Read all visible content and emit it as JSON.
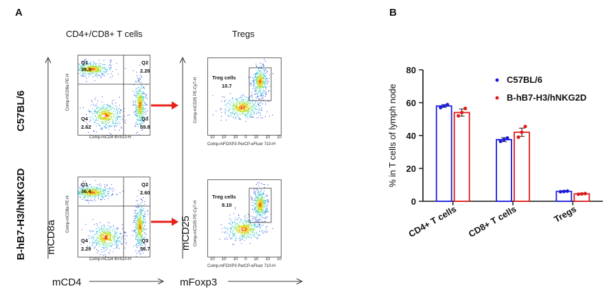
{
  "panel_a": {
    "letter": "A",
    "col_titles": [
      "CD4+/CD8+ T cells",
      "Tregs"
    ],
    "row_labels": [
      "C57BL/6",
      "B-hB7-H3/hNKG2D"
    ],
    "axis_captions": {
      "x_left": "mCD4",
      "y_left": "mCD8a",
      "x_right": "mFoxp3",
      "y_right": "mCD25"
    },
    "dot_x_label": "Comp-mCD4 BV510-H",
    "dot_y_label": "Comp-mCD8a PE-H",
    "treg_x_label": "Comp-mFOXP3 PerCP-eFluor 710-H",
    "treg_y_label": "Comp-mCD25 PE-Cy7-H",
    "treg_x_ticks": [
      "10",
      "10",
      "10",
      "0",
      "10",
      "10",
      "10"
    ],
    "quadrant_names": [
      "Q1",
      "Q2",
      "Q3",
      "Q4"
    ],
    "rows": [
      {
        "q1": "35.3",
        "q2": "2.26",
        "q3": "59.8",
        "q4": "2.62",
        "treg_gate": "Treg cells",
        "treg_value": "10.7"
      },
      {
        "q1": "36.4",
        "q2": "2.60",
        "q3": "58.7",
        "q4": "2.29",
        "treg_gate": "Treg cells",
        "treg_value": "8.10"
      }
    ],
    "colors": {
      "arrow": "#e8201a",
      "density_low": "#2c2cd6",
      "density_high": "#e01010"
    }
  },
  "panel_b": {
    "letter": "B",
    "chart_data": {
      "type": "bar",
      "title": "",
      "xlabel": "",
      "ylabel": "% in T cells of lymph node",
      "categories": [
        "CD4+ T cells",
        "CD8+ T cells",
        "Tregs"
      ],
      "ylim": [
        0,
        80
      ],
      "yticks": [
        0,
        20,
        40,
        60,
        80
      ],
      "series": [
        {
          "name": "C57BL/6",
          "color": "#1a1ae0",
          "values": [
            58,
            37.5,
            6
          ],
          "errors": [
            0.8,
            1.2,
            0.3
          ],
          "points": [
            [
              57,
              58,
              58.8
            ],
            [
              36.5,
              37.5,
              38.5
            ],
            [
              5.8,
              6,
              6.2
            ]
          ]
        },
        {
          "name": "B-hB7-H3/hNKG2D",
          "color": "#e01a1a",
          "values": [
            54,
            42,
            4.5
          ],
          "errors": [
            2.2,
            2.5,
            0.3
          ],
          "points": [
            [
              52,
              54,
              56.5
            ],
            [
              39,
              42,
              45.5
            ],
            [
              4.3,
              4.5,
              4.7
            ]
          ]
        }
      ],
      "legend_position": "top-right",
      "grid": false
    }
  }
}
